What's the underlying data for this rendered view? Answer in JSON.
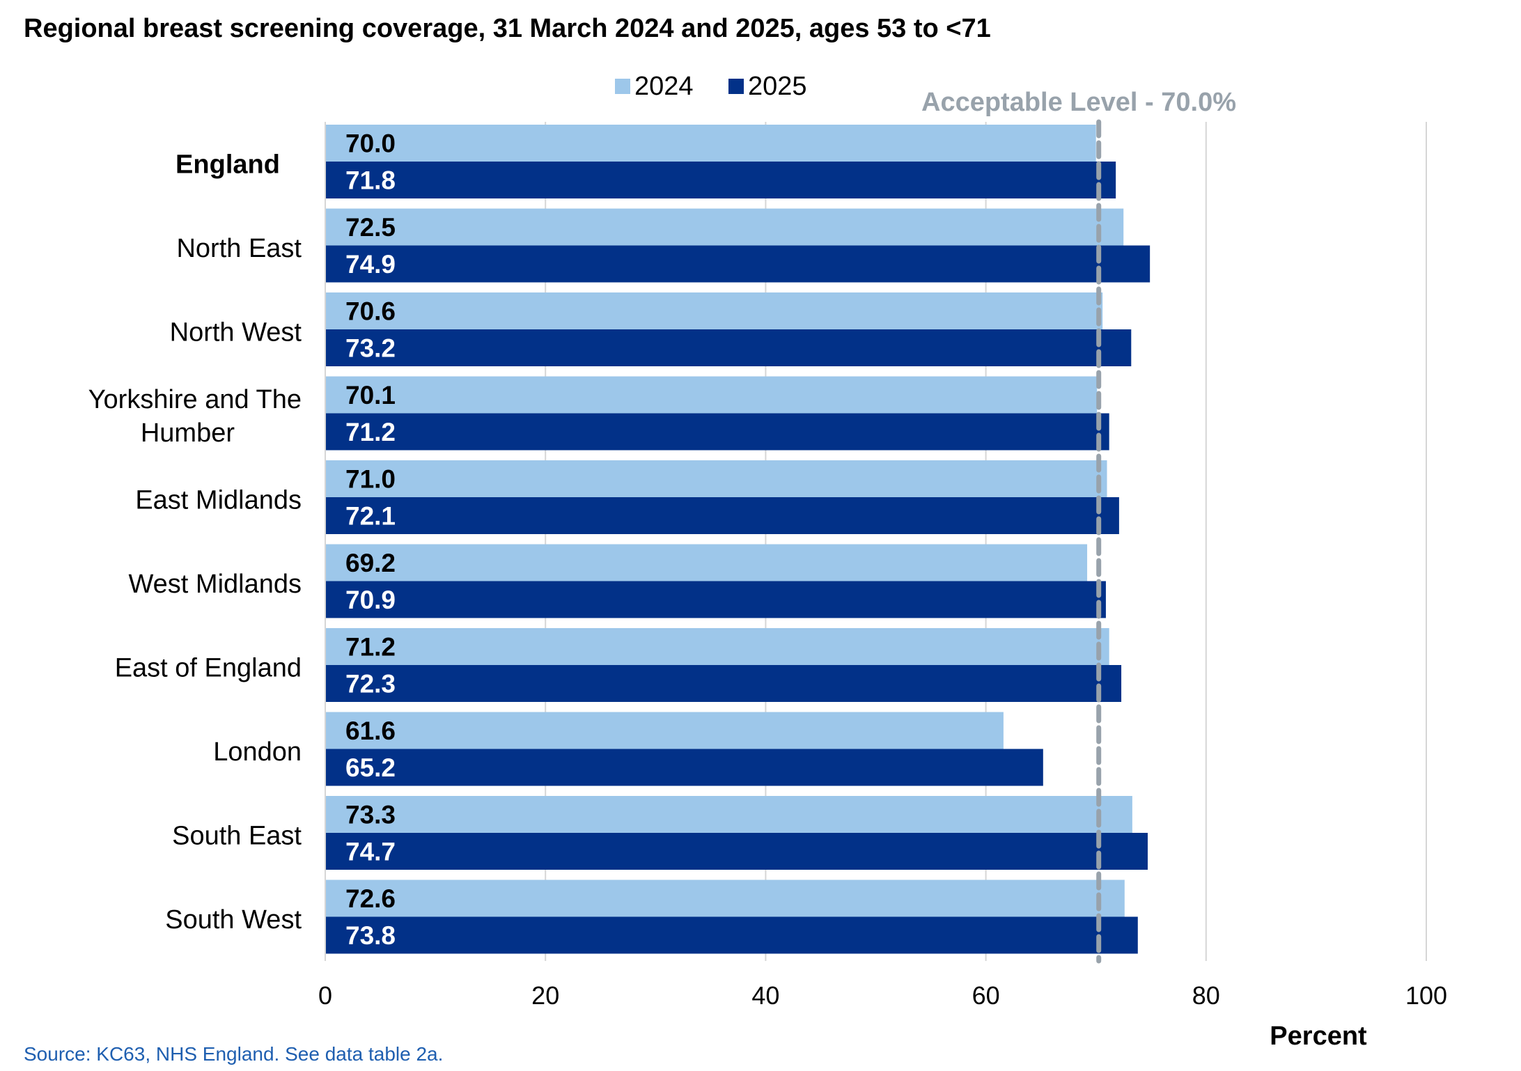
{
  "chart_data": {
    "type": "bar",
    "orientation": "horizontal",
    "title": "Regional breast screening coverage, 31 March 2024 and 2025, ages 53 to <71",
    "xlabel": "Percent",
    "ylabel": "",
    "xlim": [
      0,
      100
    ],
    "xticks": [
      "0",
      "20",
      "40",
      "60",
      "80",
      "100"
    ],
    "grid": true,
    "legend_position": "top",
    "categories": [
      "England",
      "North East",
      "North West",
      "Yorkshire and The Humber",
      "East Midlands",
      "West Midlands",
      "East of England",
      "London",
      "South East",
      "South West"
    ],
    "series": [
      {
        "name": "2024",
        "color": "#9dc7ea",
        "values": [
          70.0,
          72.5,
          70.6,
          70.1,
          71.0,
          69.2,
          71.2,
          61.6,
          73.3,
          72.6
        ],
        "labels": [
          "70.0",
          "72.5",
          "70.6",
          "70.1",
          "71.0",
          "69.2",
          "71.2",
          "61.6",
          "73.3",
          "72.6"
        ]
      },
      {
        "name": "2025",
        "color": "#023188",
        "values": [
          71.8,
          74.9,
          73.2,
          71.2,
          72.1,
          70.9,
          72.3,
          65.2,
          74.7,
          73.8
        ],
        "labels": [
          "71.8",
          "74.9",
          "73.2",
          "71.2",
          "72.1",
          "70.9",
          "72.3",
          "65.2",
          "74.7",
          "73.8"
        ]
      }
    ],
    "reference_line": {
      "value": 70.0,
      "label": "Acceptable Level - 70.0%",
      "color": "#98a2ab"
    },
    "source": "Source: KC63, NHS England. See data table 2a."
  }
}
